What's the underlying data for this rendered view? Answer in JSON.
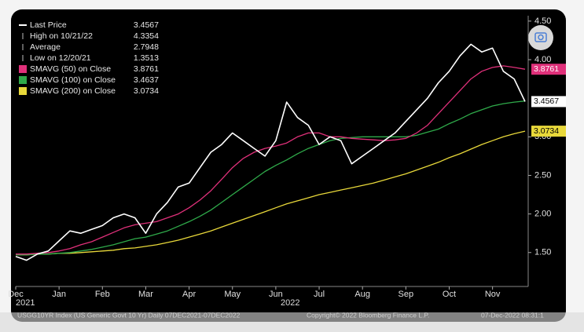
{
  "chart_data": {
    "type": "line",
    "categories": [
      "Dec",
      null,
      null,
      null,
      "Jan",
      null,
      null,
      null,
      "Feb",
      null,
      null,
      null,
      "Mar",
      null,
      null,
      null,
      "Apr",
      null,
      null,
      null,
      "May",
      null,
      null,
      null,
      "Jun",
      null,
      null,
      null,
      "Jul",
      null,
      null,
      null,
      "Aug",
      null,
      null,
      null,
      "Sep",
      null,
      null,
      null,
      "Oct",
      null,
      null,
      null,
      "Nov",
      null,
      null,
      null
    ],
    "year_start": "2021",
    "year_end": "2022",
    "series": [
      {
        "name": "Last Price",
        "legend_value": "3.4567",
        "color": "#ffffff",
        "values": [
          1.45,
          1.4,
          1.48,
          1.52,
          1.65,
          1.78,
          1.75,
          1.8,
          1.85,
          1.95,
          2.0,
          1.95,
          1.75,
          2.0,
          2.15,
          2.35,
          2.4,
          2.6,
          2.8,
          2.9,
          3.05,
          2.95,
          2.85,
          2.75,
          2.95,
          3.45,
          3.25,
          3.15,
          2.9,
          3.0,
          2.95,
          2.65,
          2.75,
          2.85,
          2.95,
          3.05,
          3.2,
          3.35,
          3.5,
          3.7,
          3.85,
          4.05,
          4.2,
          4.1,
          4.15,
          3.85,
          3.75,
          3.4567
        ]
      },
      {
        "name": "SMAVG (50)  on Close",
        "legend_value": "3.8761",
        "color": "#e0307a",
        "values": [
          1.48,
          1.48,
          1.49,
          1.5,
          1.52,
          1.55,
          1.6,
          1.64,
          1.7,
          1.76,
          1.82,
          1.86,
          1.88,
          1.9,
          1.95,
          2.0,
          2.08,
          2.18,
          2.3,
          2.45,
          2.6,
          2.72,
          2.8,
          2.85,
          2.88,
          2.92,
          3.0,
          3.05,
          3.05,
          3.0,
          3.0,
          2.98,
          2.97,
          2.96,
          2.95,
          2.96,
          2.98,
          3.05,
          3.15,
          3.3,
          3.45,
          3.6,
          3.75,
          3.85,
          3.9,
          3.92,
          3.9,
          3.8761
        ]
      },
      {
        "name": "SMAVG (100)  on Close",
        "legend_value": "3.4637",
        "color": "#2faa4a",
        "values": [
          1.47,
          1.47,
          1.48,
          1.48,
          1.49,
          1.5,
          1.52,
          1.54,
          1.57,
          1.6,
          1.64,
          1.68,
          1.7,
          1.74,
          1.78,
          1.84,
          1.9,
          1.97,
          2.05,
          2.15,
          2.25,
          2.35,
          2.45,
          2.55,
          2.63,
          2.7,
          2.78,
          2.85,
          2.9,
          2.95,
          2.98,
          2.99,
          3.0,
          3.0,
          3.0,
          3.0,
          3.0,
          3.02,
          3.06,
          3.1,
          3.17,
          3.23,
          3.3,
          3.35,
          3.4,
          3.43,
          3.45,
          3.4637
        ]
      },
      {
        "name": "SMAVG (200)  on Close",
        "legend_value": "3.0734",
        "color": "#e8d83a",
        "values": [
          1.47,
          1.47,
          1.48,
          1.48,
          1.49,
          1.49,
          1.5,
          1.51,
          1.52,
          1.53,
          1.55,
          1.56,
          1.58,
          1.6,
          1.63,
          1.66,
          1.7,
          1.74,
          1.78,
          1.83,
          1.88,
          1.93,
          1.98,
          2.03,
          2.08,
          2.13,
          2.17,
          2.21,
          2.25,
          2.28,
          2.31,
          2.34,
          2.37,
          2.4,
          2.44,
          2.48,
          2.52,
          2.57,
          2.62,
          2.67,
          2.73,
          2.78,
          2.84,
          2.9,
          2.95,
          3.0,
          3.04,
          3.0734
        ]
      }
    ],
    "stats": [
      {
        "label": "High on 10/21/22",
        "value": "4.3354"
      },
      {
        "label": "Average",
        "value": "2.7948"
      },
      {
        "label": "Low on 12/20/21",
        "value": "1.3513"
      }
    ],
    "ylim": [
      1.06,
      4.57
    ],
    "yticks": [
      {
        "value": 1.5,
        "label": "1.50"
      },
      {
        "value": 2,
        "label": "2.00"
      },
      {
        "value": 2.5,
        "label": "2.50"
      },
      {
        "value": 3,
        "label": "3.00"
      },
      {
        "value": 4,
        "label": "4.00"
      },
      {
        "value": 4.5,
        "label": "4.50"
      }
    ],
    "footer_left": "USGG10YR Index (US Generic Govt 10 Yr)  Daily 07DEC2021-07DEC2022",
    "footer_mid": "Copyright© 2022 Bloomberg Finance L.P.",
    "footer_right": "07-Dec-2022 08:31:1"
  }
}
